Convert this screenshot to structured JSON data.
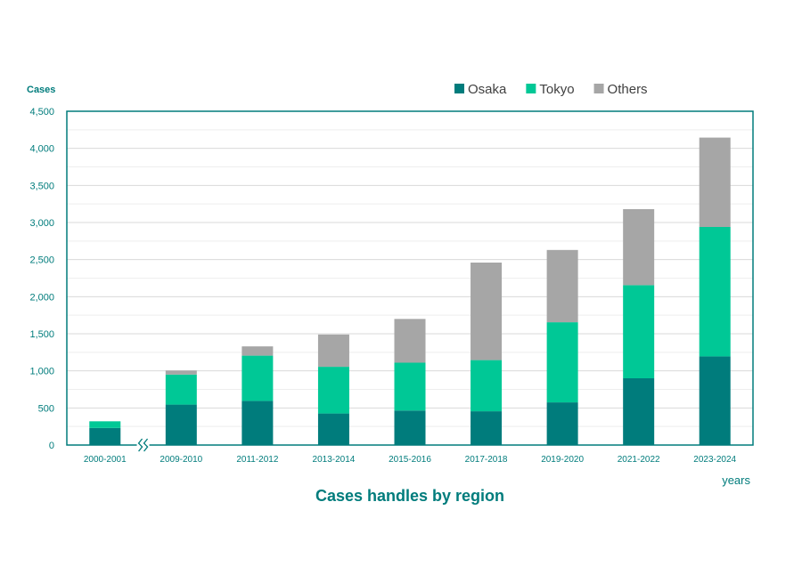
{
  "chart_data": {
    "type": "bar",
    "stacked": true,
    "title": "Cases handles by region",
    "ylabel": "Cases",
    "xlabel": "years",
    "ylim": [
      0,
      4500
    ],
    "yticks": [
      0,
      500,
      1000,
      1500,
      2000,
      2500,
      3000,
      3500,
      4000,
      4500
    ],
    "ytick_labels": [
      "0",
      "500",
      "1,000",
      "1,500",
      "2,000",
      "2,500",
      "3,000",
      "3,500",
      "4,000",
      "4,500"
    ],
    "grid": true,
    "legend_position": "top-right",
    "axis_break_after_category": "2000-2001",
    "categories": [
      "2000-2001",
      "2009-2010",
      "2011-2012",
      "2013-2014",
      "2015-2016",
      "2017-2018",
      "2019-2020",
      "2021-2022",
      "2023-2024"
    ],
    "series": [
      {
        "name": "Osaka",
        "color": "#007c7c",
        "values": [
          230,
          545,
          595,
          425,
          465,
          455,
          575,
          900,
          1195
        ]
      },
      {
        "name": "Tokyo",
        "color": "#00c896",
        "values": [
          90,
          405,
          610,
          630,
          645,
          690,
          1080,
          1255,
          1745
        ]
      },
      {
        "name": "Others",
        "color": "#a6a6a6",
        "values": [
          0,
          55,
          125,
          435,
          590,
          1315,
          975,
          1025,
          1205
        ]
      }
    ],
    "colors": {
      "axis": "#007c7c",
      "text": "#007c7c",
      "grid": "#d9d9d9",
      "legend_text": "#404040"
    }
  }
}
